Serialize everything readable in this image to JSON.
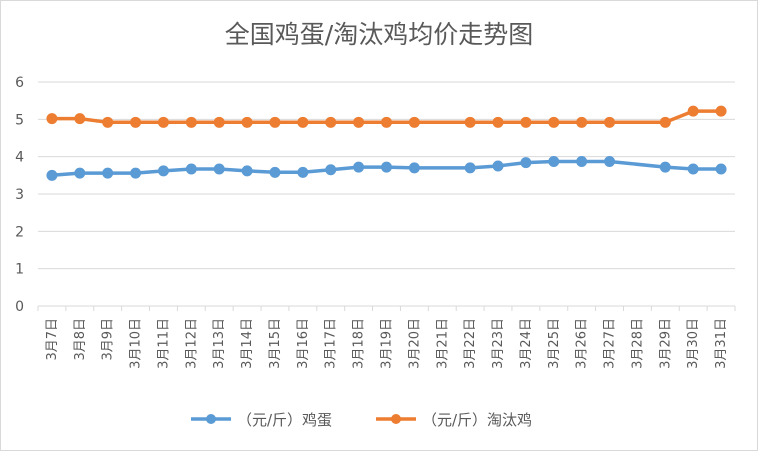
{
  "chart_data": {
    "type": "line",
    "title": "全国鸡蛋/淘汰鸡均价走势图",
    "xlabel": "",
    "ylabel": "",
    "ylim": [
      0,
      6
    ],
    "yticks": [
      0,
      1,
      2,
      3,
      4,
      5,
      6
    ],
    "grid": true,
    "legend_position": "bottom",
    "categories": [
      "3月7日",
      "3月8日",
      "3月9日",
      "3月10日",
      "3月11日",
      "3月12日",
      "3月13日",
      "3月14日",
      "3月15日",
      "3月16日",
      "3月17日",
      "3月18日",
      "3月19日",
      "3月20日",
      "3月21日",
      "3月22日",
      "3月23日",
      "3月24日",
      "3月25日",
      "3月26日",
      "3月27日",
      "3月28日",
      "3月29日",
      "3月30日",
      "3月31日"
    ],
    "series": [
      {
        "name": "（元/斤）鸡蛋",
        "color": "#5b9bd5",
        "values": [
          3.5,
          3.56,
          3.56,
          3.56,
          3.62,
          3.67,
          3.67,
          3.62,
          3.58,
          3.58,
          3.65,
          3.72,
          3.72,
          3.7,
          null,
          3.7,
          3.75,
          3.84,
          3.87,
          3.87,
          3.87,
          null,
          3.72,
          3.67,
          3.67
        ]
      },
      {
        "name": "（元/斤）淘汰鸡",
        "color": "#ed7d31",
        "values": [
          5.02,
          5.02,
          4.92,
          4.92,
          4.92,
          4.92,
          4.92,
          4.92,
          4.92,
          4.92,
          4.92,
          4.92,
          4.92,
          4.92,
          null,
          4.92,
          4.92,
          4.92,
          4.92,
          4.92,
          4.92,
          null,
          4.92,
          5.22,
          5.22
        ]
      }
    ]
  }
}
